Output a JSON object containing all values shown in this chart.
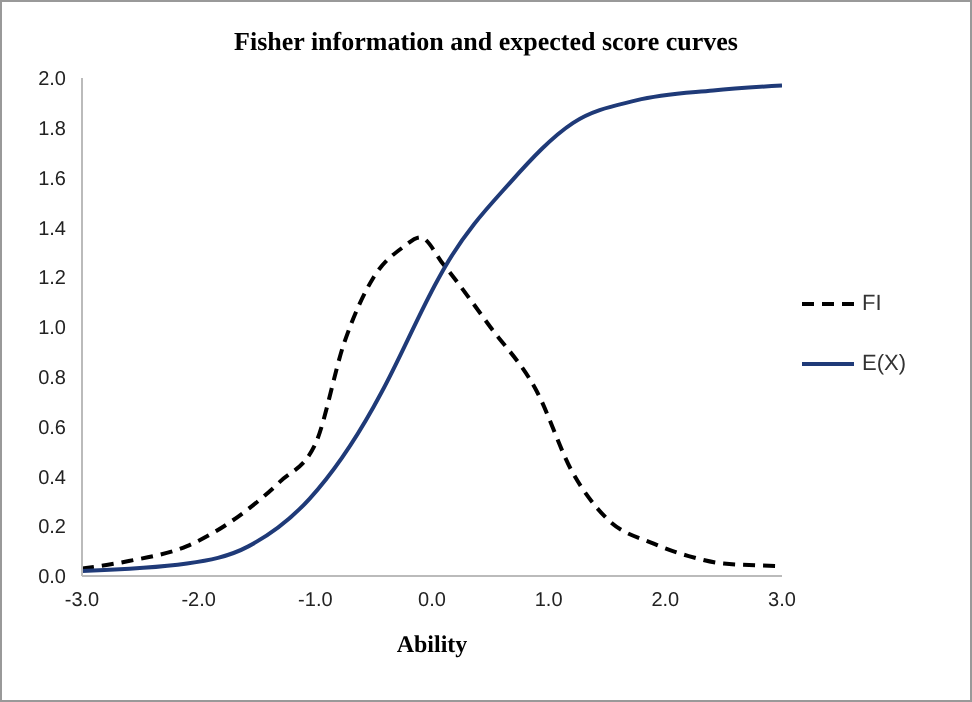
{
  "chart_data": {
    "type": "line",
    "title": "Fisher information and expected score curves",
    "xlabel": "Ability",
    "xlim": [
      -3,
      3
    ],
    "xticks": [
      {
        "value": -3,
        "label": "-3.0"
      },
      {
        "value": -2,
        "label": "-2.0"
      },
      {
        "value": -1,
        "label": "-1.0"
      },
      {
        "value": 0,
        "label": "0.0"
      },
      {
        "value": 1,
        "label": "1.0"
      },
      {
        "value": 2,
        "label": "2.0"
      },
      {
        "value": 3,
        "label": "3.0"
      }
    ],
    "ylim": [
      0,
      2
    ],
    "yticks": [
      {
        "value": 0,
        "label": "0.0"
      },
      {
        "value": 0.2,
        "label": "0.2"
      },
      {
        "value": 0.4,
        "label": "0.4"
      },
      {
        "value": 0.6,
        "label": "0.6"
      },
      {
        "value": 0.8,
        "label": "0.8"
      },
      {
        "value": 1,
        "label": "1.0"
      },
      {
        "value": 1.2,
        "label": "1.2"
      },
      {
        "value": 1.4,
        "label": "1.4"
      },
      {
        "value": 1.6,
        "label": "1.6"
      },
      {
        "value": 1.8,
        "label": "1.8"
      },
      {
        "value": 2,
        "label": "2.0"
      }
    ],
    "grid": false,
    "legend": "right",
    "marker": "none",
    "series": [
      {
        "name": "FI",
        "color": "#000000",
        "line_style": "dashed",
        "x": [
          -3,
          -2.6,
          -2.1,
          -1.6,
          -1.3,
          -1,
          -0.75,
          -0.5,
          -0.25,
          -0.1,
          0.1,
          0.5,
          0.9,
          1.2,
          1.5,
          1.9,
          2.2,
          2.5,
          3
        ],
        "values": [
          0.03,
          0.06,
          0.12,
          0.26,
          0.38,
          0.53,
          0.94,
          1.2,
          1.32,
          1.36,
          1.25,
          1,
          0.74,
          0.42,
          0.23,
          0.13,
          0.08,
          0.05,
          0.04
        ]
      },
      {
        "name": "E(X)",
        "color": "#1f3a78",
        "line_style": "solid",
        "x": [
          -3,
          -2.1,
          -1.57,
          -1.05,
          -0.5,
          -0.43,
          0.05,
          0.11,
          0.67,
          1.21,
          1.75,
          2.41,
          3
        ],
        "values": [
          0.02,
          0.05,
          0.12,
          0.31,
          0.68,
          0.74,
          1.19,
          1.24,
          1.58,
          1.82,
          1.91,
          1.95,
          1.97
        ]
      }
    ]
  }
}
